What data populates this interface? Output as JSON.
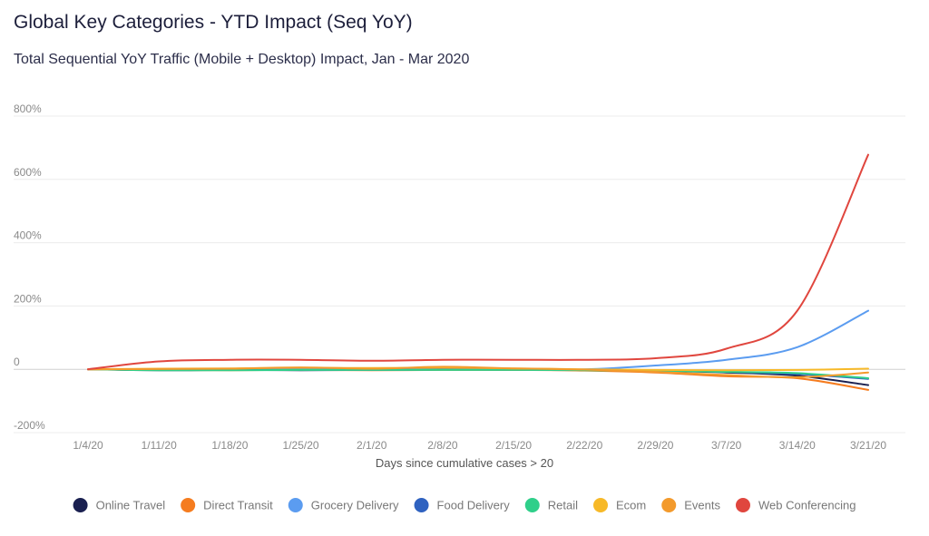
{
  "title": "Global Key Categories - YTD Impact (Seq YoY)",
  "subtitle": "Total Sequential YoY Traffic (Mobile + Desktop) Impact, Jan - Mar 2020",
  "chart_data": {
    "type": "line",
    "title": "Global Key Categories - YTD Impact (Seq YoY)",
    "subtitle": "Total Sequential YoY Traffic (Mobile + Desktop) Impact, Jan - Mar 2020",
    "xlabel": "Days since cumulative cases > 20",
    "ylabel": "",
    "ylim": [
      -200,
      800
    ],
    "yticks": [
      800,
      600,
      400,
      200,
      0,
      -200
    ],
    "ytick_labels": [
      "800%",
      "600%",
      "400%",
      "200%",
      "0",
      "-200%"
    ],
    "categories": [
      "1/4/20",
      "1/11/20",
      "1/18/20",
      "1/25/20",
      "2/1/20",
      "2/8/20",
      "2/15/20",
      "2/22/20",
      "2/29/20",
      "3/7/20",
      "3/14/20",
      "3/21/20"
    ],
    "grid": true,
    "legend_position": "bottom",
    "series": [
      {
        "name": "Online Travel",
        "color": "#1a2050",
        "values": [
          0,
          -3,
          -2,
          -3,
          -2,
          -1,
          -2,
          -3,
          -5,
          -10,
          -20,
          -50
        ]
      },
      {
        "name": "Direct Transit",
        "color": "#f57c1f",
        "values": [
          0,
          -2,
          -3,
          -2,
          -3,
          -2,
          -2,
          -4,
          -10,
          -22,
          -28,
          -65
        ]
      },
      {
        "name": "Grocery Delivery",
        "color": "#5b9cf0",
        "values": [
          0,
          -1,
          -1,
          0,
          0,
          0,
          1,
          0,
          12,
          30,
          70,
          185
        ]
      },
      {
        "name": "Food Delivery",
        "color": "#2f62c0",
        "values": [
          0,
          -2,
          -2,
          -2,
          -2,
          -1,
          -1,
          -2,
          -4,
          -8,
          -15,
          -30
        ]
      },
      {
        "name": "Retail",
        "color": "#2fcf8a",
        "values": [
          0,
          -3,
          -3,
          -2,
          -2,
          -2,
          -2,
          -3,
          -5,
          -8,
          -12,
          -28
        ]
      },
      {
        "name": "Ecom",
        "color": "#f7b928",
        "values": [
          0,
          2,
          3,
          5,
          4,
          5,
          3,
          0,
          -2,
          -3,
          -2,
          2
        ]
      },
      {
        "name": "Events",
        "color": "#f39a2c",
        "values": [
          0,
          1,
          2,
          6,
          2,
          8,
          3,
          -1,
          -8,
          -18,
          -25,
          -10
        ]
      },
      {
        "name": "Web Conferencing",
        "color": "#e0463e",
        "values": [
          0,
          25,
          30,
          30,
          27,
          30,
          30,
          30,
          35,
          65,
          185,
          678
        ]
      }
    ]
  }
}
